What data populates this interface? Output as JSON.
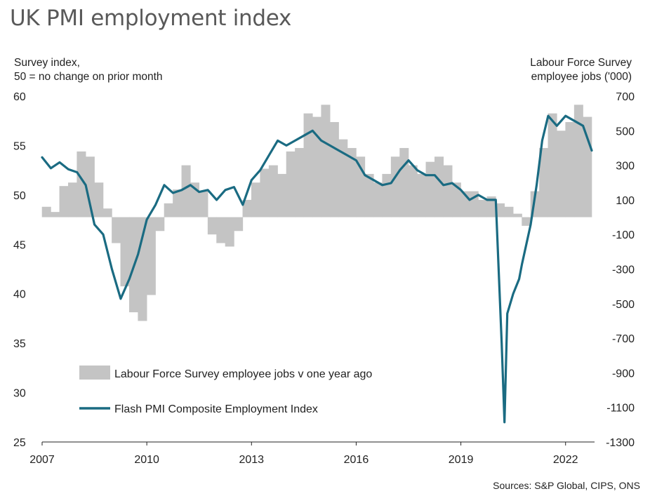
{
  "title": "UK PMI employment index",
  "left_axis_title": [
    "Survey index,",
    "50 = no change on prior month"
  ],
  "right_axis_title": [
    "Labour Force Survey",
    "employee jobs  ('000)"
  ],
  "source": "Sources: S&P Global, CIPS, ONS",
  "colors": {
    "line": "#1a6b82",
    "bars": "#c4c4c4",
    "text": "#222222",
    "title": "#595959"
  },
  "chart_data": {
    "type": "bar+line",
    "title": "UK PMI employment index",
    "x_ticks": [
      "2007",
      "2010",
      "2013",
      "2016",
      "2019",
      "2022"
    ],
    "x_range": [
      2007.0,
      2022.75
    ],
    "left_axis": {
      "label": "Survey index, 50 = no change on prior month",
      "range": [
        25,
        60
      ],
      "ticks": [
        "25",
        "30",
        "35",
        "40",
        "45",
        "50",
        "55",
        "60"
      ]
    },
    "right_axis": {
      "label": "Labour Force Survey employee jobs ('000)",
      "range": [
        -1300,
        700
      ],
      "ticks": [
        "-1300",
        "-1100",
        "-900",
        "-700",
        "-500",
        "-300",
        "-100",
        "100",
        "300",
        "500",
        "700"
      ]
    },
    "legend": [
      "Labour Force Survey employee jobs v one year ago",
      "Flash PMI Composite Employment Index"
    ],
    "series": [
      {
        "name": "Labour Force Survey employee jobs v one year ago",
        "type": "bar",
        "axis": "right",
        "x": [
          2007.0,
          2007.25,
          2007.5,
          2007.75,
          2008.0,
          2008.25,
          2008.5,
          2008.75,
          2009.0,
          2009.25,
          2009.5,
          2009.75,
          2010.0,
          2010.25,
          2010.5,
          2010.75,
          2011.0,
          2011.25,
          2011.5,
          2011.75,
          2012.0,
          2012.25,
          2012.5,
          2012.75,
          2013.0,
          2013.25,
          2013.5,
          2013.75,
          2014.0,
          2014.25,
          2014.5,
          2014.75,
          2015.0,
          2015.25,
          2015.5,
          2015.75,
          2016.0,
          2016.25,
          2016.5,
          2016.75,
          2017.0,
          2017.25,
          2017.5,
          2017.75,
          2018.0,
          2018.25,
          2018.5,
          2018.75,
          2019.0,
          2019.25,
          2019.5,
          2019.75,
          2020.0,
          2020.25,
          2020.5,
          2020.75,
          2021.0,
          2021.25,
          2021.5,
          2021.75,
          2022.0,
          2022.25,
          2022.5
        ],
        "values": [
          60,
          30,
          180,
          200,
          380,
          350,
          200,
          50,
          -150,
          -400,
          -550,
          -600,
          -450,
          -80,
          80,
          160,
          300,
          200,
          150,
          -100,
          -150,
          -170,
          -80,
          100,
          200,
          280,
          300,
          250,
          380,
          400,
          600,
          580,
          650,
          550,
          450,
          400,
          350,
          250,
          200,
          250,
          350,
          400,
          300,
          250,
          320,
          350,
          300,
          200,
          150,
          150,
          100,
          120,
          80,
          60,
          20,
          -50,
          150,
          400,
          600,
          500,
          550,
          650,
          580
        ]
      },
      {
        "name": "Flash PMI Composite Employment Index",
        "type": "line",
        "axis": "left",
        "x": [
          2007.0,
          2007.25,
          2007.5,
          2007.75,
          2008.0,
          2008.25,
          2008.5,
          2008.75,
          2009.0,
          2009.25,
          2009.5,
          2009.75,
          2010.0,
          2010.25,
          2010.5,
          2010.75,
          2011.0,
          2011.25,
          2011.5,
          2011.75,
          2012.0,
          2012.25,
          2012.5,
          2012.75,
          2013.0,
          2013.25,
          2013.5,
          2013.75,
          2014.0,
          2014.25,
          2014.5,
          2014.75,
          2015.0,
          2015.25,
          2015.5,
          2015.75,
          2016.0,
          2016.25,
          2016.5,
          2016.75,
          2017.0,
          2017.25,
          2017.5,
          2017.75,
          2018.0,
          2018.25,
          2018.5,
          2018.75,
          2019.0,
          2019.25,
          2019.5,
          2019.75,
          2020.0,
          2020.17,
          2020.25,
          2020.33,
          2020.5,
          2020.67,
          2020.75,
          2021.0,
          2021.17,
          2021.33,
          2021.5,
          2021.75,
          2022.0,
          2022.25,
          2022.5,
          2022.75
        ],
        "values": [
          53.8,
          52.7,
          53.3,
          52.6,
          52.3,
          51.0,
          47.0,
          46.0,
          42.5,
          39.5,
          41.5,
          44.0,
          47.5,
          49.0,
          51.0,
          50.2,
          50.5,
          51.0,
          50.3,
          50.5,
          49.5,
          50.5,
          50.8,
          49.0,
          51.5,
          52.5,
          54.0,
          55.5,
          55.0,
          55.5,
          56.0,
          56.5,
          55.5,
          55.0,
          54.5,
          54.0,
          53.5,
          52.0,
          51.5,
          51.0,
          51.2,
          52.5,
          53.5,
          52.5,
          52.0,
          52.0,
          51.0,
          51.2,
          50.5,
          49.5,
          50.0,
          49.5,
          49.5,
          35.0,
          27.0,
          38.0,
          40.0,
          41.5,
          43.0,
          47.0,
          51.0,
          55.5,
          58.0,
          57.0,
          58.0,
          57.5,
          57.0,
          54.5
        ]
      }
    ]
  }
}
